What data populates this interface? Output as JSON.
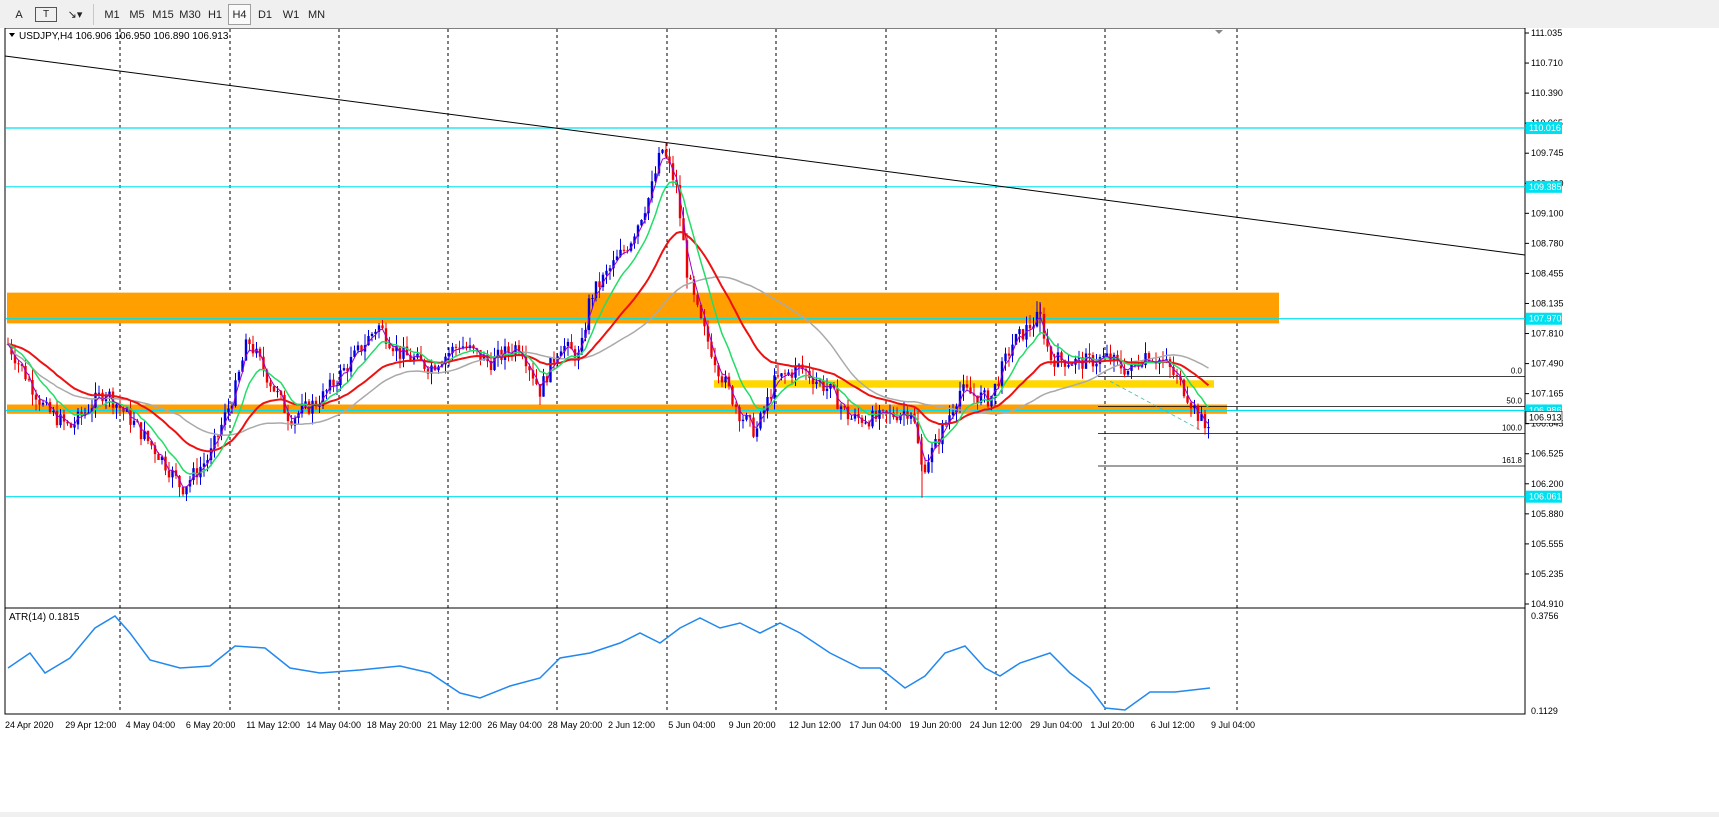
{
  "toolbar": {
    "tools": [
      {
        "name": "text-tool",
        "label": "A"
      },
      {
        "name": "text-label-tool",
        "label": "T"
      },
      {
        "name": "shapes-tool",
        "label": "↘▾"
      }
    ],
    "timeframes": [
      "M1",
      "M5",
      "M15",
      "M30",
      "H1",
      "H4",
      "D1",
      "W1",
      "MN"
    ],
    "selected_timeframe": "H4"
  },
  "chart": {
    "symbol_info": "USDJPY,H4  106.906 106.950 106.890 106.913",
    "price_scale": [
      "111.035",
      "110.710",
      "110.390",
      "110.065",
      "109.745",
      "109.420",
      "109.100",
      "108.780",
      "108.455",
      "108.135",
      "107.810",
      "107.490",
      "107.165",
      "106.845",
      "106.525",
      "106.200",
      "105.880",
      "105.555",
      "105.235",
      "104.910"
    ],
    "price_badges": [
      {
        "value": "110.016",
        "price": 110.016
      },
      {
        "value": "109.385",
        "price": 109.385
      },
      {
        "value": "107.970",
        "price": 107.97
      },
      {
        "value": "106.986",
        "price": 106.986
      },
      {
        "value": "106.913",
        "price": 106.913
      },
      {
        "value": "106.061",
        "price": 106.061
      }
    ],
    "fib_labels": [
      {
        "label": "0.0",
        "price": 107.35
      },
      {
        "label": "50.0",
        "price": 107.03
      },
      {
        "label": "100.0",
        "price": 106.74
      },
      {
        "label": "161.8",
        "price": 106.39
      }
    ],
    "time_labels": [
      "24 Apr 2020",
      "29 Apr 12:00",
      "4 May 04:00",
      "6 May 20:00",
      "11 May 12:00",
      "14 May 04:00",
      "18 May 20:00",
      "21 May 12:00",
      "26 May 04:00",
      "28 May 20:00",
      "2 Jun 12:00",
      "5 Jun 04:00",
      "9 Jun 20:00",
      "12 Jun 12:00",
      "17 Jun 04:00",
      "19 Jun 20:00",
      "24 Jun 12:00",
      "29 Jun 04:00",
      "1 Jul 20:00",
      "6 Jul 12:00",
      "9 Jul 04:00"
    ],
    "colors": {
      "bull": "#0000dd",
      "bear": "#ee0000",
      "ema_fast": "#9900cc",
      "ema_mid": "#22dd66",
      "ema_slow": "#ee1111",
      "sma_long": "#aaaaaa",
      "hline": "#00e0f0",
      "zone_orange": "#ffa000",
      "zone_yellow": "#ffd800",
      "atr": "#2288ee"
    }
  },
  "atr": {
    "label": "ATR(14) 0.1815",
    "scale_top": "0.3756",
    "scale_bottom": "0.1129"
  }
}
